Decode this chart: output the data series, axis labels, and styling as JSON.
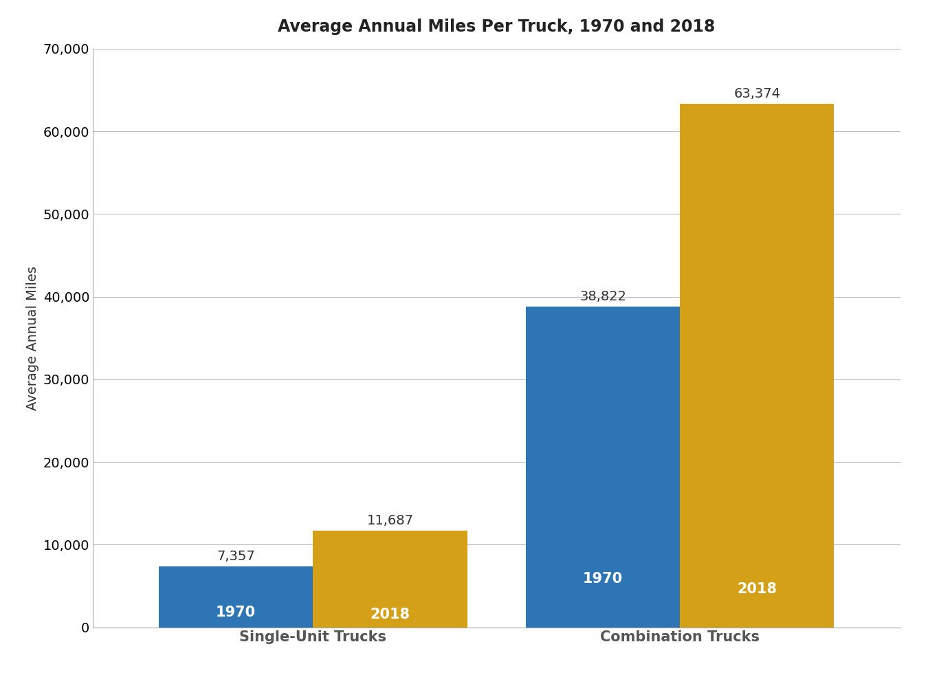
{
  "title": "Average Annual Miles Per Truck, 1970 and 2018",
  "ylabel": "Average Annual Miles",
  "categories": [
    "Single-Unit Trucks",
    "Combination Trucks"
  ],
  "years": [
    "1970",
    "2018"
  ],
  "values_1970": [
    7357,
    38822
  ],
  "values_2018": [
    11687,
    63374
  ],
  "color_1970": "#2E75B6",
  "color_2018": "#D4A017",
  "ylim": [
    0,
    70000
  ],
  "yticks": [
    0,
    10000,
    20000,
    30000,
    40000,
    50000,
    60000,
    70000
  ],
  "bar_width": 0.42,
  "title_fontsize": 17,
  "tick_fontsize": 14,
  "ylabel_fontsize": 14,
  "bar_label_fontsize": 14,
  "year_label_fontsize": 15,
  "xtick_fontsize": 15,
  "background_color": "#FFFFFF",
  "grid_color": "#BBBBBB"
}
